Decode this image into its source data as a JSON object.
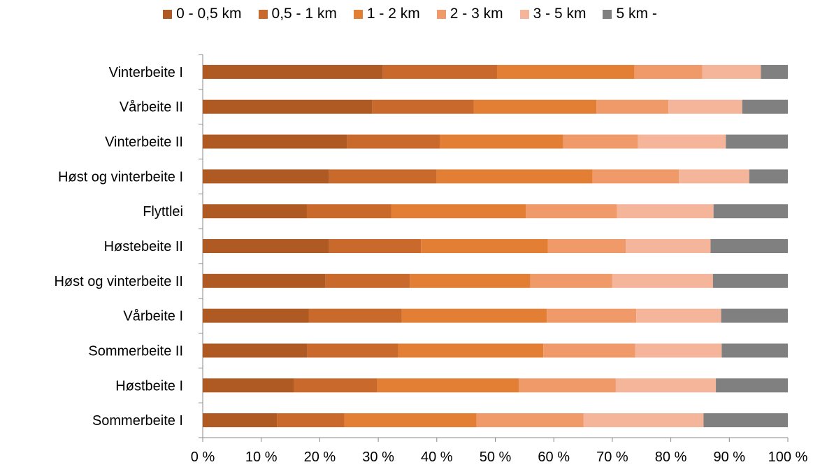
{
  "chart_data": {
    "type": "bar",
    "orientation": "horizontal",
    "stacked": true,
    "percent_stacked": true,
    "categories": [
      "Vinterbeite I",
      "Vårbeite II",
      "Vinterbeite II",
      "Høst og vinterbeite I",
      "Flyttlei",
      "Høstebeite II",
      "Høst og vinterbeite II",
      "Vårbeite I",
      "Sommerbeite II",
      "Høstbeite I",
      "Sommerbeite I"
    ],
    "series": [
      {
        "name": "0 - 0,5 km",
        "color": "#b05a23",
        "values": [
          30.8,
          29.0,
          24.7,
          21.6,
          17.8,
          21.6,
          21.0,
          18.1,
          17.9,
          15.6,
          12.7
        ]
      },
      {
        "name": "0,5 - 1 km",
        "color": "#c96a2c",
        "values": [
          19.5,
          17.3,
          15.8,
          18.4,
          14.4,
          15.7,
          14.4,
          15.9,
          15.5,
          14.2,
          11.5
        ]
      },
      {
        "name": "1 - 2 km",
        "color": "#e27f35",
        "values": [
          23.5,
          21.0,
          21.1,
          26.6,
          23.0,
          21.7,
          20.6,
          24.8,
          24.8,
          24.2,
          22.6
        ]
      },
      {
        "name": "2 - 3 km",
        "color": "#f09a6a",
        "values": [
          11.6,
          12.3,
          12.8,
          14.8,
          15.6,
          13.3,
          14.0,
          15.3,
          15.7,
          16.6,
          18.3
        ]
      },
      {
        "name": "3 - 5 km",
        "color": "#f4b59b",
        "values": [
          10.0,
          12.6,
          15.0,
          12.0,
          16.5,
          14.5,
          17.2,
          14.5,
          14.8,
          17.1,
          20.5
        ]
      },
      {
        "name": "5 km -",
        "color": "#808080",
        "values": [
          4.6,
          7.8,
          10.6,
          6.6,
          12.7,
          13.2,
          12.8,
          11.4,
          11.3,
          12.3,
          14.4
        ]
      }
    ],
    "xlim": [
      0,
      100
    ],
    "xticks": [
      "0 %",
      "10 %",
      "20 %",
      "30 %",
      "40 %",
      "50 %",
      "60 %",
      "70 %",
      "80 %",
      "90 %",
      "100 %"
    ],
    "legend_position": "top",
    "grid": false
  }
}
